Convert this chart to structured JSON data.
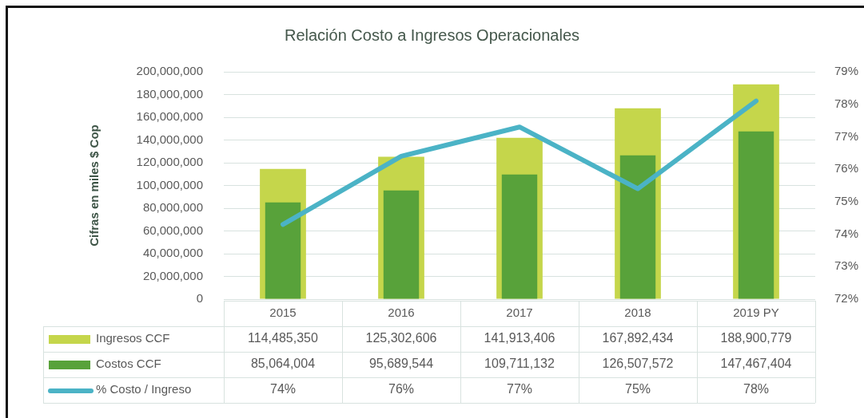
{
  "chart_data": {
    "type": "bar",
    "title": "Relación Costo a Ingresos Operacionales",
    "ylabel": "Cifras en miles $ Cop",
    "categories": [
      "2015",
      "2016",
      "2017",
      "2018",
      "2019 PY"
    ],
    "series": [
      {
        "name": "Ingresos CCF",
        "color": "#c5d64b",
        "values": [
          114485350,
          125302606,
          141913406,
          167892434,
          188900779
        ],
        "value_labels": [
          "114,485,350",
          "125,302,606",
          "141,913,406",
          "167,892,434",
          "188,900,779"
        ]
      },
      {
        "name": "Costos CCF",
        "color": "#58a23a",
        "values": [
          85064004,
          95689544,
          109711132,
          126507572,
          147467404
        ],
        "value_labels": [
          "85,064,004",
          "95,689,544",
          "109,711,132",
          "126,507,572",
          "147,467,404"
        ]
      },
      {
        "name": "% Costo / Ingreso",
        "type": "line",
        "axis": "y2",
        "color": "#4bb3c6",
        "values": [
          74.3,
          76.4,
          77.3,
          75.4,
          78.1
        ],
        "value_labels": [
          "74%",
          "76%",
          "77%",
          "75%",
          "78%"
        ]
      }
    ],
    "ylim": [
      0,
      200000000
    ],
    "yticks": [
      {
        "value": 0,
        "label": "0"
      },
      {
        "value": 20000000,
        "label": "20,000,000"
      },
      {
        "value": 40000000,
        "label": "40,000,000"
      },
      {
        "value": 60000000,
        "label": "60,000,000"
      },
      {
        "value": 80000000,
        "label": "80,000,000"
      },
      {
        "value": 100000000,
        "label": "100,000,000"
      },
      {
        "value": 120000000,
        "label": "120,000,000"
      },
      {
        "value": 140000000,
        "label": "140,000,000"
      },
      {
        "value": 160000000,
        "label": "160,000,000"
      },
      {
        "value": 180000000,
        "label": "180,000,000"
      },
      {
        "value": 200000000,
        "label": "200,000,000"
      }
    ],
    "y2lim": [
      72,
      79
    ],
    "y2ticks": [
      {
        "value": 72,
        "label": "72%"
      },
      {
        "value": 73,
        "label": "73%"
      },
      {
        "value": 74,
        "label": "74%"
      },
      {
        "value": 75,
        "label": "75%"
      },
      {
        "value": 76,
        "label": "76%"
      },
      {
        "value": 77,
        "label": "77%"
      },
      {
        "value": 78,
        "label": "78%"
      },
      {
        "value": 79,
        "label": "79%"
      }
    ],
    "grid": "y",
    "legend": "bottom",
    "marker": "none"
  }
}
